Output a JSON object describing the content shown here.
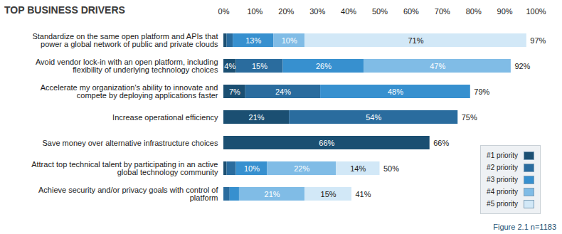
{
  "chart_data": {
    "type": "bar",
    "orientation": "horizontal",
    "stacked": true,
    "data_labels": true,
    "legend": "bottom-right",
    "grid": false,
    "title": "TOP BUSINESS DRIVERS",
    "caption": "Figure 2.1 n=1183",
    "categories": [
      "Standardize on the same open platform and APIs that power a global network of public and private clouds",
      "Avoid vendor lock-in with an open platform, including flexibility of underlying technology choices",
      "Accelerate my organization's ability to innovate and compete by deploying applications faster",
      "Increase operational efficiency",
      "Save money over alternative infrastructure choices",
      "Attract top technical talent by participating in an active global technology community",
      "Achieve security and/or privacy goals with control of platform"
    ],
    "xlim": [
      0,
      100
    ],
    "xticks": [
      {
        "value": 0,
        "label": "0%"
      },
      {
        "value": 10,
        "label": "10%"
      },
      {
        "value": 20,
        "label": "20%"
      },
      {
        "value": 30,
        "label": "30%"
      },
      {
        "value": 40,
        "label": "40%"
      },
      {
        "value": 50,
        "label": "50%"
      },
      {
        "value": 60,
        "label": "60%"
      },
      {
        "value": 70,
        "label": "70%"
      },
      {
        "value": 80,
        "label": "80%"
      },
      {
        "value": 90,
        "label": "90%"
      },
      {
        "value": 100,
        "label": "100%"
      }
    ],
    "totals": [
      97,
      92,
      79,
      75,
      66,
      50,
      41
    ],
    "total_labels": [
      "97%",
      "92%",
      "79%",
      "75%",
      "66%",
      "50%",
      "41%"
    ],
    "series": [
      {
        "name": "#1 priority",
        "color": "#1b4f72",
        "values": [
          1,
          4,
          7,
          21,
          66,
          1,
          0
        ],
        "value_labels": [
          null,
          "4%",
          "7%",
          "21%",
          "66%",
          null,
          null
        ]
      },
      {
        "name": "#2 priority",
        "color": "#2a6c9e",
        "values": [
          2,
          15,
          24,
          54,
          0,
          3,
          2
        ],
        "value_labels": [
          null,
          "15%",
          "24%",
          "54%",
          null,
          null,
          null
        ]
      },
      {
        "name": "#3 priority",
        "color": "#3790cf",
        "values": [
          13,
          26,
          48,
          0,
          0,
          10,
          3
        ],
        "value_labels": [
          "13%",
          "26%",
          "48%",
          null,
          null,
          "10%",
          null
        ]
      },
      {
        "name": "#4 priority",
        "color": "#80bce6",
        "values": [
          10,
          47,
          0,
          0,
          0,
          22,
          21
        ],
        "value_labels": [
          "10%",
          "47%",
          null,
          null,
          null,
          "22%",
          "21%"
        ]
      },
      {
        "name": "#5 priority",
        "color": "#d2e8f7",
        "values": [
          71,
          0,
          0,
          0,
          0,
          14,
          15
        ],
        "value_labels": [
          "71%",
          null,
          null,
          null,
          null,
          "14%",
          "15%"
        ]
      }
    ]
  }
}
